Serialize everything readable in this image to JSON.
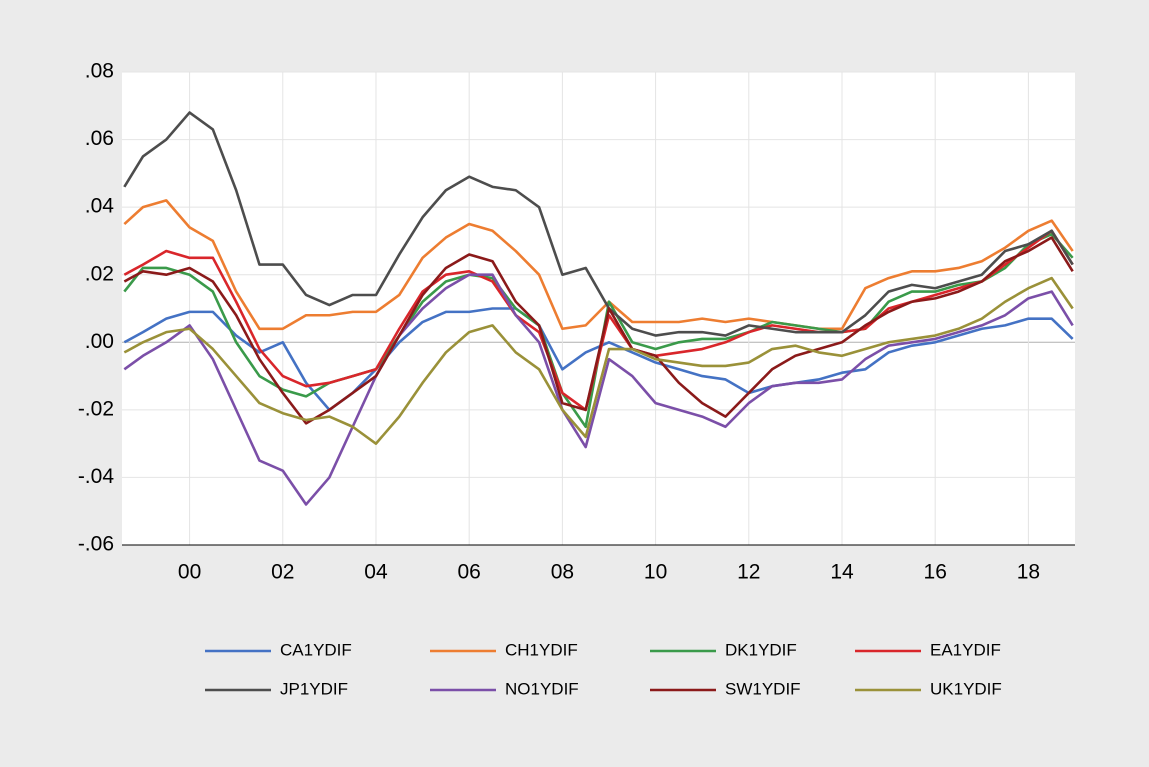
{
  "chart_data": {
    "type": "line",
    "x": [
      1998.6,
      1999,
      1999.5,
      2000,
      2000.5,
      2001,
      2001.5,
      2002,
      2002.5,
      2003,
      2003.5,
      2004,
      2004.5,
      2005,
      2005.5,
      2006,
      2006.5,
      2007,
      2007.5,
      2008,
      2008.5,
      2009,
      2009.5,
      2010,
      2010.5,
      2011,
      2011.5,
      2012,
      2012.5,
      2013,
      2013.5,
      2014,
      2014.5,
      2015,
      2015.5,
      2016,
      2016.5,
      2017,
      2017.5,
      2018,
      2018.5,
      2018.95
    ],
    "xlim": [
      1998.55,
      2019.0
    ],
    "xticks": [
      {
        "value": 2000,
        "label": "00"
      },
      {
        "value": 2002,
        "label": "02"
      },
      {
        "value": 2004,
        "label": "04"
      },
      {
        "value": 2006,
        "label": "06"
      },
      {
        "value": 2008,
        "label": "08"
      },
      {
        "value": 2010,
        "label": "10"
      },
      {
        "value": 2012,
        "label": "12"
      },
      {
        "value": 2014,
        "label": "14"
      },
      {
        "value": 2016,
        "label": "16"
      },
      {
        "value": 2018,
        "label": "18"
      }
    ],
    "ylim": [
      -0.06,
      0.08
    ],
    "yticks": [
      {
        "value": 0.08,
        "label": ".08"
      },
      {
        "value": 0.06,
        "label": ".06"
      },
      {
        "value": 0.04,
        "label": ".04"
      },
      {
        "value": 0.02,
        "label": ".02"
      },
      {
        "value": 0.0,
        "label": ".00"
      },
      {
        "value": -0.02,
        "label": "-.02"
      },
      {
        "value": -0.04,
        "label": "-.04"
      },
      {
        "value": -0.06,
        "label": "-.06"
      }
    ],
    "grid": true,
    "legend": "bottom",
    "series": [
      {
        "name": "CA1YDIF",
        "color": "#4472c4",
        "values": [
          0.0,
          0.003,
          0.007,
          0.009,
          0.009,
          0.002,
          -0.003,
          0.0,
          -0.012,
          -0.02,
          -0.015,
          -0.008,
          0.0,
          0.006,
          0.009,
          0.009,
          0.01,
          0.01,
          0.005,
          -0.008,
          -0.003,
          0.0,
          -0.003,
          -0.006,
          -0.008,
          -0.01,
          -0.011,
          -0.015,
          -0.013,
          -0.012,
          -0.011,
          -0.009,
          -0.008,
          -0.003,
          -0.001,
          0.0,
          0.002,
          0.004,
          0.005,
          0.007,
          0.007,
          0.001
        ]
      },
      {
        "name": "CH1YDIF",
        "color": "#ed7d31",
        "values": [
          0.035,
          0.04,
          0.042,
          0.034,
          0.03,
          0.015,
          0.004,
          0.004,
          0.008,
          0.008,
          0.009,
          0.009,
          0.014,
          0.025,
          0.031,
          0.035,
          0.033,
          0.027,
          0.02,
          0.004,
          0.005,
          0.012,
          0.006,
          0.006,
          0.006,
          0.007,
          0.006,
          0.007,
          0.006,
          0.005,
          0.004,
          0.004,
          0.016,
          0.019,
          0.021,
          0.021,
          0.022,
          0.024,
          0.028,
          0.033,
          0.036,
          0.027
        ]
      },
      {
        "name": "DK1YDIF",
        "color": "#3a9a4a",
        "values": [
          0.015,
          0.022,
          0.022,
          0.02,
          0.015,
          0.0,
          -0.01,
          -0.014,
          -0.016,
          -0.012,
          -0.01,
          -0.008,
          0.002,
          0.012,
          0.018,
          0.02,
          0.019,
          0.01,
          0.005,
          -0.015,
          -0.025,
          0.012,
          0.0,
          -0.002,
          0.0,
          0.001,
          0.001,
          0.003,
          0.006,
          0.005,
          0.004,
          0.003,
          0.004,
          0.012,
          0.015,
          0.015,
          0.017,
          0.018,
          0.022,
          0.029,
          0.032,
          0.025
        ]
      },
      {
        "name": "EA1YDIF",
        "color": "#d9262b",
        "values": [
          0.02,
          0.023,
          0.027,
          0.025,
          0.025,
          0.012,
          -0.002,
          -0.01,
          -0.013,
          -0.012,
          -0.01,
          -0.008,
          0.004,
          0.015,
          0.02,
          0.021,
          0.018,
          0.008,
          0.003,
          -0.015,
          -0.02,
          0.008,
          -0.002,
          -0.004,
          -0.003,
          -0.002,
          0.0,
          0.003,
          0.005,
          0.004,
          0.003,
          0.003,
          0.004,
          0.01,
          0.012,
          0.014,
          0.016,
          0.018,
          0.023,
          0.028,
          0.033,
          0.023
        ]
      },
      {
        "name": "JP1YDIF",
        "color": "#4d4d4d",
        "values": [
          0.046,
          0.055,
          0.06,
          0.068,
          0.063,
          0.045,
          0.023,
          0.023,
          0.014,
          0.011,
          0.014,
          0.014,
          0.026,
          0.037,
          0.045,
          0.049,
          0.046,
          0.045,
          0.04,
          0.02,
          0.022,
          0.01,
          0.004,
          0.002,
          0.003,
          0.003,
          0.002,
          0.005,
          0.004,
          0.003,
          0.003,
          0.003,
          0.008,
          0.015,
          0.017,
          0.016,
          0.018,
          0.02,
          0.027,
          0.029,
          0.033,
          0.023
        ]
      },
      {
        "name": "NO1YDIF",
        "color": "#7b4fa8",
        "values": [
          -0.008,
          -0.004,
          0.0,
          0.005,
          -0.005,
          -0.02,
          -0.035,
          -0.038,
          -0.048,
          -0.04,
          -0.025,
          -0.01,
          0.002,
          0.01,
          0.016,
          0.02,
          0.02,
          0.008,
          0.0,
          -0.02,
          -0.031,
          -0.005,
          -0.01,
          -0.018,
          -0.02,
          -0.022,
          -0.025,
          -0.018,
          -0.013,
          -0.012,
          -0.012,
          -0.011,
          -0.005,
          -0.001,
          0.0,
          0.001,
          0.003,
          0.005,
          0.008,
          0.013,
          0.015,
          0.005
        ]
      },
      {
        "name": "SW1YDIF",
        "color": "#8b1a1a",
        "values": [
          0.018,
          0.021,
          0.02,
          0.022,
          0.018,
          0.008,
          -0.005,
          -0.015,
          -0.024,
          -0.02,
          -0.015,
          -0.01,
          0.002,
          0.014,
          0.022,
          0.026,
          0.024,
          0.012,
          0.005,
          -0.018,
          -0.02,
          0.01,
          -0.002,
          -0.004,
          -0.012,
          -0.018,
          -0.022,
          -0.015,
          -0.008,
          -0.004,
          -0.002,
          0.0,
          0.005,
          0.009,
          0.012,
          0.013,
          0.015,
          0.018,
          0.024,
          0.027,
          0.031,
          0.021
        ]
      },
      {
        "name": "UK1YDIF",
        "color": "#9a9139",
        "values": [
          -0.003,
          0.0,
          0.003,
          0.004,
          -0.002,
          -0.01,
          -0.018,
          -0.021,
          -0.023,
          -0.022,
          -0.025,
          -0.03,
          -0.022,
          -0.012,
          -0.003,
          0.003,
          0.005,
          -0.003,
          -0.008,
          -0.02,
          -0.028,
          -0.002,
          -0.002,
          -0.005,
          -0.006,
          -0.007,
          -0.007,
          -0.006,
          -0.002,
          -0.001,
          -0.003,
          -0.004,
          -0.002,
          0.0,
          0.001,
          0.002,
          0.004,
          0.007,
          0.012,
          0.016,
          0.019,
          0.01
        ]
      }
    ]
  }
}
